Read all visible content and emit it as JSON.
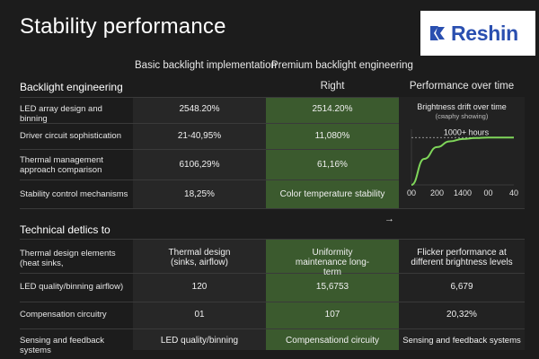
{
  "page": {
    "title": "Stability performance"
  },
  "logo": {
    "text": "Reshin"
  },
  "columns": {
    "basic": "Basic backlight implementation",
    "premium": "Premium backlight engineering"
  },
  "section1": {
    "label": "Backlight engineering",
    "basic_sub": "",
    "premium_sub": "Right",
    "perf_header": "Performance over time",
    "rows": [
      {
        "label": "LED array design and binning",
        "basic": "2548.20%",
        "premium": "2514.20%"
      },
      {
        "label": "Driver circuit sophistication",
        "basic": "21-40,95%",
        "premium": "11,080%"
      },
      {
        "label": "Thermal management approach comparison",
        "basic": "6106,29%",
        "premium": "61,16%"
      },
      {
        "label": "Stability control mechanisms",
        "basic": "18,25%",
        "premium": "Color temperature stability"
      }
    ]
  },
  "chart_data": {
    "type": "line",
    "title": "Brightness drift over time",
    "subtitle": "(cᴙaphy showing)",
    "annotation": "1000+ hours",
    "x_ticks": [
      "00",
      "200",
      "1400",
      "00",
      "40"
    ],
    "x": [
      0,
      0.5,
      1,
      1.5,
      2,
      2.5,
      3,
      3.5,
      4
    ],
    "y": [
      0,
      0.55,
      0.8,
      0.92,
      0.97,
      0.99,
      1.0,
      1.0,
      1.0
    ],
    "ylim": [
      0,
      1.1
    ],
    "colors": {
      "line": "#7fd65a",
      "grid": "#3a3a3a",
      "annotation": "#bdbdbd"
    }
  },
  "arrow": "→",
  "section2": {
    "heading": "Technical detlics to",
    "rows": [
      {
        "label": "Thermal design elements (heat sinks,",
        "basic": "Thermal design (sinks, airflow)",
        "premium": "Uniformity maintenance long-term",
        "perf": "Flicker performance at different brightness levels"
      },
      {
        "label": "LED quality/binning airflow)",
        "basic": "120",
        "premium": "15,6753",
        "perf": "6,679"
      },
      {
        "label": "Compensation circuitry",
        "basic": "01",
        "premium": "107",
        "perf": "20,32%"
      },
      {
        "label": "Sensing and feedback systems",
        "basic": "LED quality/binning",
        "premium": "Compensationd circuity",
        "perf": "Sensing and feedback systems"
      }
    ]
  }
}
